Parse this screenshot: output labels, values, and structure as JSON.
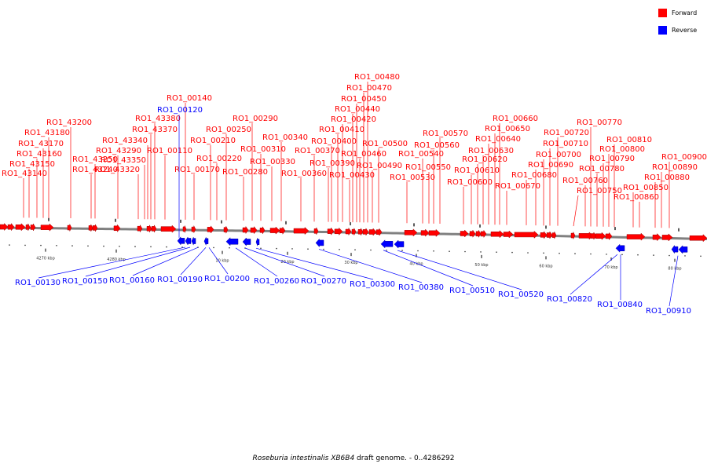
{
  "legend": {
    "forward": {
      "label": "Forward",
      "color": "#ff0000"
    },
    "reverse": {
      "label": "Reverse",
      "color": "#0000ff"
    }
  },
  "caption": {
    "species": "Roseburia intestinalis XB6B4",
    "rest": " draft genome. - 0..4286292"
  },
  "axis": {
    "tick_labels": [
      "4270 kbp",
      "4280 kbp",
      "10 kbp",
      "20 kbp",
      "30 kbp",
      "40 kbp",
      "50 kbp",
      "60 kbp",
      "70 kbp",
      "80 kbp"
    ]
  },
  "forward_genes": [
    "RO1_43140",
    "RO1_43150",
    "RO1_43160",
    "RO1_43170",
    "RO1_43180",
    "RO1_43200",
    "RO1_43240",
    "RO1_43250",
    "RO1_43290",
    "RO1_43320",
    "RO1_43350",
    "RO1_43340",
    "RO1_43370",
    "RO1_43380",
    "RO1_00110",
    "RO1_00140",
    "RO1_00170",
    "RO1_00210",
    "RO1_00220",
    "RO1_00250",
    "RO1_00280",
    "RO1_00290",
    "RO1_00310",
    "RO1_00330",
    "RO1_00340",
    "RO1_00360",
    "RO1_00370",
    "RO1_00390",
    "RO1_00400",
    "RO1_00410",
    "RO1_00420",
    "RO1_00430",
    "RO1_00440",
    "RO1_00450",
    "RO1_00460",
    "RO1_00470",
    "RO1_00480",
    "RO1_00490",
    "RO1_00500",
    "RO1_00530",
    "RO1_00540",
    "RO1_00550",
    "RO1_00560",
    "RO1_00570",
    "RO1_00600",
    "RO1_00610",
    "RO1_00620",
    "RO1_00630",
    "RO1_00640",
    "RO1_00650",
    "RO1_00660",
    "RO1_00670",
    "RO1_00680",
    "RO1_00690",
    "RO1_00700",
    "RO1_00710",
    "RO1_00720",
    "RO1_00750",
    "RO1_00760",
    "RO1_00770",
    "RO1_00780",
    "RO1_00790",
    "RO1_00800",
    "RO1_00810",
    "RO1_00850",
    "RO1_00860",
    "RO1_00880",
    "RO1_00890",
    "RO1_00900"
  ],
  "reverse_genes": [
    "RO1_00120",
    "RO1_00130",
    "RO1_00150",
    "RO1_00160",
    "RO1_00190",
    "RO1_00200",
    "RO1_00260",
    "RO1_00270",
    "RO1_00300",
    "RO1_00380",
    "RO1_00510",
    "RO1_00520",
    "RO1_00820",
    "RO1_00840",
    "RO1_00910"
  ]
}
